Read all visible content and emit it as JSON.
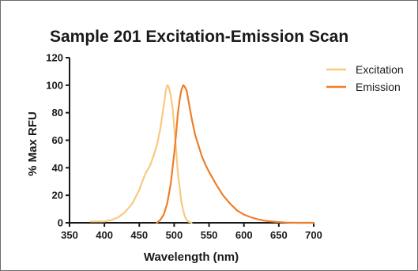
{
  "chart_data": {
    "type": "line",
    "title": "Sample 201 Excitation-Emission Scan",
    "xlabel": "Wavelength (nm)",
    "ylabel": "% Max RFU",
    "xlim": [
      350,
      700
    ],
    "ylim": [
      0,
      120
    ],
    "x_ticks": [
      350,
      400,
      450,
      500,
      550,
      600,
      650,
      700
    ],
    "y_ticks": [
      0,
      20,
      40,
      60,
      80,
      100,
      120
    ],
    "grid": false,
    "legend_position": "top-right",
    "series": [
      {
        "name": "Excitation",
        "color": "#f9c97f",
        "x": [
          380,
          400,
          410,
          420,
          430,
          440,
          450,
          455,
          460,
          465,
          470,
          475,
          480,
          485,
          488,
          490,
          492,
          495,
          498,
          500,
          503,
          505,
          508,
          510,
          513,
          515,
          518,
          520,
          525
        ],
        "y": [
          1,
          1,
          2,
          4,
          8,
          14,
          24,
          31,
          37,
          41,
          48,
          56,
          68,
          85,
          96,
          100,
          99,
          93,
          82,
          70,
          52,
          38,
          25,
          16,
          9,
          5,
          2,
          1,
          0
        ]
      },
      {
        "name": "Emission",
        "color": "#ee7f2a",
        "x": [
          475,
          480,
          485,
          490,
          495,
          500,
          503,
          505,
          508,
          510,
          513,
          515,
          518,
          520,
          525,
          530,
          535,
          540,
          545,
          550,
          560,
          570,
          580,
          590,
          600,
          610,
          620,
          630,
          640,
          650,
          660,
          675,
          700
        ],
        "y": [
          0,
          2,
          6,
          14,
          28,
          50,
          66,
          78,
          90,
          96,
          100,
          99,
          96,
          90,
          76,
          64,
          56,
          48,
          42,
          37,
          28,
          20,
          14,
          9,
          6,
          4,
          2.5,
          1.5,
          1,
          0.5,
          0.2,
          0,
          0
        ]
      }
    ]
  }
}
